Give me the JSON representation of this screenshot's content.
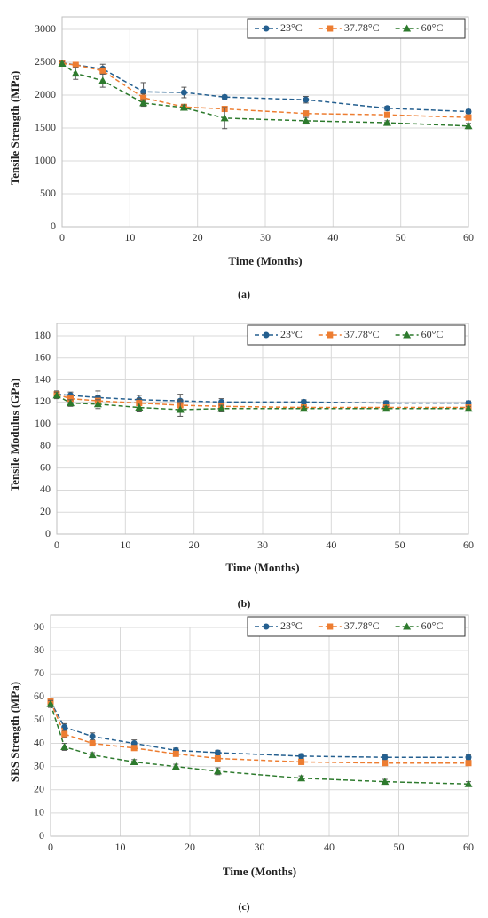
{
  "chart_data": [
    {
      "type": "line",
      "caption": "(a)",
      "x_label": "Time (Months)",
      "y_label": "Tensile Strength (MPa)",
      "x": [
        0,
        2,
        6,
        12,
        18,
        24,
        36,
        48,
        60
      ],
      "xlim": [
        0,
        60
      ],
      "xticks": [
        0,
        10,
        20,
        30,
        40,
        50,
        60
      ],
      "ylim": [
        0,
        3000
      ],
      "yticks": [
        0,
        500,
        1000,
        1500,
        2000,
        2500,
        3000
      ],
      "grid": true,
      "legend": "top-right",
      "series": [
        {
          "name": "23°C",
          "color": "#245f8f",
          "marker": "circle",
          "values": [
            2490,
            2460,
            2400,
            2050,
            2040,
            1970,
            1930,
            1800,
            1750
          ],
          "errors": [
            30,
            20,
            70,
            140,
            80,
            30,
            50,
            30,
            30
          ]
        },
        {
          "name": "37.78°C",
          "color": "#ed7d31",
          "marker": "square",
          "values": [
            2480,
            2460,
            2370,
            1960,
            1820,
            1790,
            1720,
            1700,
            1660
          ],
          "errors": [
            30,
            20,
            50,
            60,
            40,
            30,
            40,
            30,
            30
          ]
        },
        {
          "name": "60°C",
          "color": "#2d7a2d",
          "marker": "triangle",
          "values": [
            2480,
            2330,
            2220,
            1880,
            1810,
            1650,
            1610,
            1580,
            1530
          ],
          "errors": [
            30,
            90,
            100,
            50,
            40,
            160,
            50,
            30,
            40
          ]
        }
      ]
    },
    {
      "type": "line",
      "caption": "(b)",
      "x_label": "Time (Months)",
      "y_label": "Tensile Modulus (GPa)",
      "x": [
        0,
        2,
        6,
        12,
        18,
        24,
        36,
        48,
        60
      ],
      "xlim": [
        0,
        60
      ],
      "xticks": [
        0,
        10,
        20,
        30,
        40,
        50,
        60
      ],
      "ylim": [
        0,
        180
      ],
      "yticks": [
        0,
        20,
        40,
        60,
        80,
        100,
        120,
        140,
        160,
        180
      ],
      "grid": true,
      "legend": "top-right",
      "series": [
        {
          "name": "23°C",
          "color": "#245f8f",
          "marker": "circle",
          "values": [
            127,
            126,
            124,
            122,
            121,
            120,
            120,
            119,
            119
          ],
          "errors": [
            3,
            3,
            6,
            4,
            6,
            3,
            2,
            2,
            2
          ]
        },
        {
          "name": "37.78°C",
          "color": "#ed7d31",
          "marker": "square",
          "values": [
            127,
            123,
            121,
            119,
            117,
            116,
            115,
            115,
            115
          ],
          "errors": [
            3,
            3,
            5,
            4,
            5,
            3,
            2,
            2,
            2
          ]
        },
        {
          "name": "60°C",
          "color": "#2d7a2d",
          "marker": "triangle",
          "values": [
            126,
            119,
            118,
            115,
            113,
            114,
            114,
            114,
            114
          ],
          "errors": [
            3,
            3,
            4,
            4,
            6,
            3,
            2,
            2,
            2
          ]
        }
      ]
    },
    {
      "type": "line",
      "caption": "(c)",
      "x_label": "Time (Months)",
      "y_label": "SBS Strength (MPa)",
      "x": [
        0,
        2,
        6,
        12,
        18,
        24,
        36,
        48,
        60
      ],
      "xlim": [
        0,
        60
      ],
      "xticks": [
        0,
        10,
        20,
        30,
        40,
        50,
        60
      ],
      "ylim": [
        0,
        90
      ],
      "yticks": [
        0,
        10,
        20,
        30,
        40,
        50,
        60,
        70,
        80,
        90
      ],
      "grid": true,
      "legend": "top-right",
      "series": [
        {
          "name": "23°C",
          "color": "#245f8f",
          "marker": "circle",
          "values": [
            58,
            47,
            43,
            40,
            37,
            36,
            34.5,
            34,
            34
          ],
          "errors": [
            1.5,
            1.5,
            1.5,
            1.5,
            1,
            1,
            1,
            1,
            1
          ]
        },
        {
          "name": "37.78°C",
          "color": "#ed7d31",
          "marker": "square",
          "values": [
            58,
            44,
            40,
            38,
            35.5,
            33.5,
            32,
            31.5,
            31.5
          ],
          "errors": [
            1.5,
            1.5,
            1,
            1,
            1,
            1,
            1,
            1,
            1
          ]
        },
        {
          "name": "60°C",
          "color": "#2d7a2d",
          "marker": "triangle",
          "values": [
            57,
            38.5,
            35,
            32,
            30,
            28,
            25,
            23.5,
            22.5
          ],
          "errors": [
            1.5,
            1.5,
            1,
            1,
            1,
            1.5,
            1,
            1,
            1
          ]
        }
      ]
    }
  ]
}
